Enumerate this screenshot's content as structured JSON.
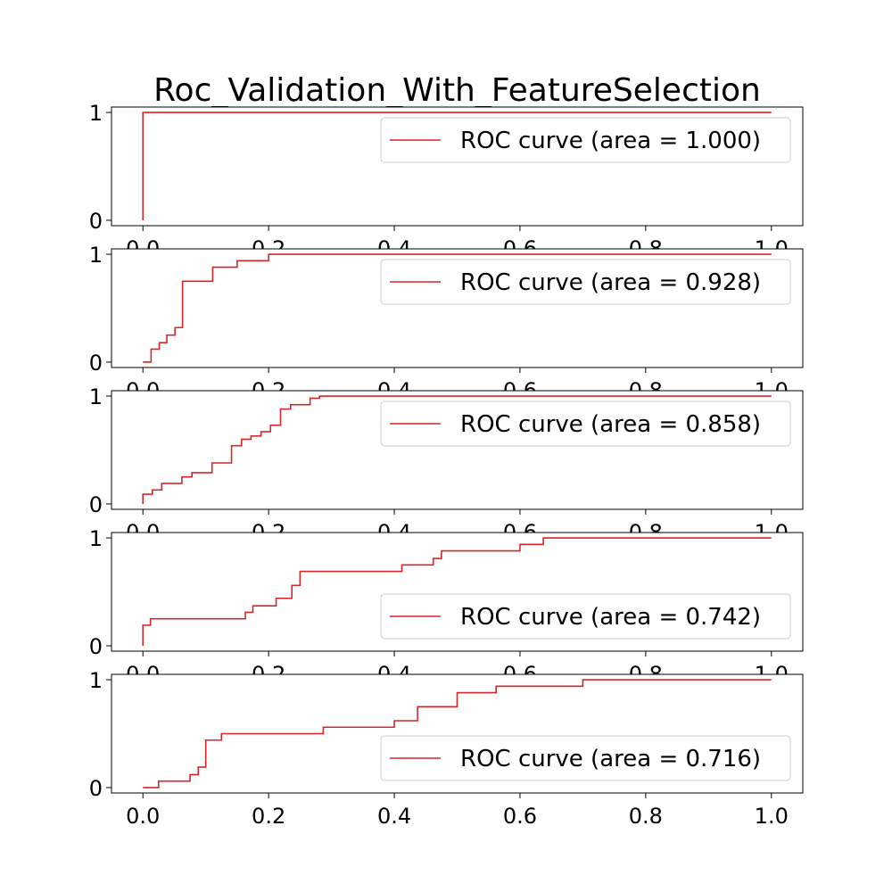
{
  "title": "Roc_Validation_With_FeatureSelection",
  "colors": {
    "curve": "#d62728",
    "axes": "#000000",
    "legend_border": "#cccccc",
    "background": "#ffffff"
  },
  "chart_data": [
    {
      "type": "line",
      "legend": "ROC curve (area = 1.000)",
      "legend_loc": "upper right",
      "xlim": [
        -0.05,
        1.05
      ],
      "ylim": [
        -0.05,
        1.05
      ],
      "xticks": [
        "0.0",
        "0.2",
        "0.4",
        "0.6",
        "0.8",
        "1.0"
      ],
      "yticks": [
        "0",
        "1"
      ],
      "x": [
        0.0,
        0.0,
        1.0
      ],
      "y": [
        0.0,
        1.0,
        1.0
      ]
    },
    {
      "type": "line",
      "legend": "ROC curve (area = 0.928)",
      "legend_loc": "upper right",
      "xlim": [
        -0.05,
        1.05
      ],
      "ylim": [
        -0.05,
        1.05
      ],
      "xticks": [
        "0.0",
        "0.2",
        "0.4",
        "0.6",
        "0.8",
        "1.0"
      ],
      "yticks": [
        "0",
        "1"
      ],
      "x": [
        0.0,
        0.013,
        0.013,
        0.026,
        0.026,
        0.038,
        0.038,
        0.051,
        0.051,
        0.063,
        0.063,
        0.111,
        0.111,
        0.15,
        0.15,
        0.2,
        0.2,
        1.0
      ],
      "y": [
        0.0,
        0.0,
        0.12,
        0.12,
        0.18,
        0.18,
        0.25,
        0.25,
        0.32,
        0.32,
        0.75,
        0.75,
        0.88,
        0.88,
        0.94,
        0.94,
        1.0,
        1.0
      ]
    },
    {
      "type": "line",
      "legend": "ROC curve (area = 0.858)",
      "legend_loc": "upper right",
      "xlim": [
        -0.05,
        1.05
      ],
      "ylim": [
        -0.05,
        1.05
      ],
      "xticks": [
        "0.0",
        "0.2",
        "0.4",
        "0.6",
        "0.8",
        "1.0"
      ],
      "yticks": [
        "0",
        "1"
      ],
      "x": [
        0.0,
        0.0,
        0.015,
        0.015,
        0.03,
        0.03,
        0.062,
        0.062,
        0.078,
        0.078,
        0.11,
        0.11,
        0.141,
        0.141,
        0.157,
        0.157,
        0.172,
        0.172,
        0.188,
        0.188,
        0.203,
        0.203,
        0.219,
        0.219,
        0.235,
        0.235,
        0.266,
        0.266,
        0.281,
        0.281,
        1.0
      ],
      "y": [
        0.0,
        0.09,
        0.09,
        0.13,
        0.13,
        0.19,
        0.19,
        0.25,
        0.25,
        0.29,
        0.29,
        0.38,
        0.38,
        0.54,
        0.54,
        0.6,
        0.6,
        0.63,
        0.63,
        0.67,
        0.67,
        0.73,
        0.73,
        0.88,
        0.88,
        0.92,
        0.92,
        0.98,
        0.98,
        1.0,
        1.0
      ]
    },
    {
      "type": "line",
      "legend": "ROC curve (area = 0.742)",
      "legend_loc": "lower right",
      "xlim": [
        -0.05,
        1.05
      ],
      "ylim": [
        -0.05,
        1.05
      ],
      "xticks": [
        "0.0",
        "0.2",
        "0.4",
        "0.6",
        "0.8",
        "1.0"
      ],
      "yticks": [
        "0",
        "1"
      ],
      "x": [
        0.0,
        0.0,
        0.012,
        0.012,
        0.163,
        0.163,
        0.175,
        0.175,
        0.212,
        0.212,
        0.237,
        0.237,
        0.25,
        0.25,
        0.412,
        0.412,
        0.462,
        0.462,
        0.475,
        0.475,
        0.6,
        0.6,
        0.637,
        0.637,
        1.0
      ],
      "y": [
        0.0,
        0.19,
        0.19,
        0.25,
        0.25,
        0.31,
        0.31,
        0.37,
        0.37,
        0.44,
        0.44,
        0.56,
        0.56,
        0.69,
        0.69,
        0.75,
        0.75,
        0.81,
        0.81,
        0.88,
        0.88,
        0.94,
        0.94,
        1.0,
        1.0
      ]
    },
    {
      "type": "line",
      "legend": "ROC curve (area = 0.716)",
      "legend_loc": "lower right",
      "xlim": [
        -0.05,
        1.05
      ],
      "ylim": [
        -0.05,
        1.05
      ],
      "xticks": [
        "0.0",
        "0.2",
        "0.4",
        "0.6",
        "0.8",
        "1.0"
      ],
      "yticks": [
        "0",
        "1"
      ],
      "x": [
        0.0,
        0.025,
        0.025,
        0.075,
        0.075,
        0.088,
        0.088,
        0.1,
        0.1,
        0.125,
        0.125,
        0.287,
        0.287,
        0.4,
        0.4,
        0.437,
        0.437,
        0.5,
        0.5,
        0.562,
        0.562,
        0.7,
        0.7,
        1.0
      ],
      "y": [
        0.0,
        0.0,
        0.06,
        0.06,
        0.12,
        0.12,
        0.19,
        0.19,
        0.44,
        0.44,
        0.5,
        0.5,
        0.56,
        0.56,
        0.62,
        0.62,
        0.75,
        0.75,
        0.88,
        0.88,
        0.94,
        0.94,
        1.0,
        1.0
      ]
    }
  ]
}
